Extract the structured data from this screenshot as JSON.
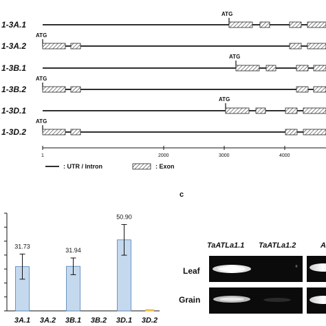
{
  "gene_structure": {
    "atg_label": "ATG",
    "axis_ticks": [
      "1",
      "2000",
      "3000",
      "4000"
    ],
    "legend": {
      "utr_intron": ": UTR / Intron",
      "exon": ": Exon"
    },
    "transcripts": [
      {
        "label": "1-3A.1",
        "atg": 3070
      },
      {
        "label": "1-3A.2",
        "atg": 1
      },
      {
        "label": "1-3B.1",
        "atg": 3200
      },
      {
        "label": "1-3B.2",
        "atg": 1
      },
      {
        "label": "1-3D.1",
        "atg": 3030
      },
      {
        "label": "1-3D.2",
        "atg": 1
      }
    ]
  },
  "panel_c_label": "c",
  "chart_data": {
    "type": "bar",
    "categories": [
      "3A.1",
      "3A.2",
      "3B.1",
      "3B.2",
      "3D.1",
      "3D.2"
    ],
    "values": [
      31.73,
      0,
      31.94,
      0,
      50.9,
      1
    ],
    "data_labels": [
      "31.73",
      "",
      "31.94",
      "",
      "50.90",
      ""
    ],
    "errors": [
      9,
      0,
      6,
      0,
      11,
      0
    ],
    "ylim": [
      0,
      70
    ],
    "colors": {
      "bar": "#c5d9ee",
      "bar_edge": "#4f7fb3",
      "small_bar": "#f0c040"
    }
  },
  "gel": {
    "columns": [
      "TaATLa1.1",
      "TaATLa1.2",
      "A"
    ],
    "rows": [
      "Leaf",
      "Grain"
    ]
  }
}
